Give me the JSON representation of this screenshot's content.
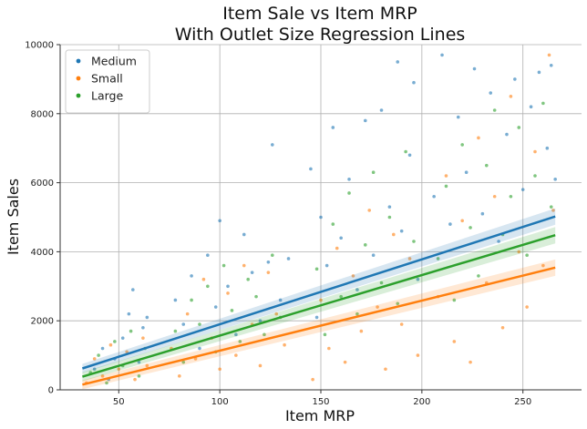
{
  "chart_data": {
    "type": "scatter",
    "title": "Item Sale vs Item MRP",
    "subtitle": "With Outlet Size Regression Lines",
    "xlabel": "Item MRP",
    "ylabel": "Item Sales",
    "xlim": [
      21,
      279
    ],
    "ylim": [
      0,
      10000
    ],
    "xticks": [
      50,
      100,
      150,
      200,
      250
    ],
    "yticks": [
      0,
      2000,
      4000,
      6000,
      8000,
      10000
    ],
    "grid": true,
    "legend_position": "top-left",
    "series": [
      {
        "name": "Medium",
        "color": "#1f77b4",
        "regression": [
          [
            32,
            620
          ],
          [
            266,
            5020
          ]
        ],
        "points": [
          [
            38,
            600
          ],
          [
            42,
            1200
          ],
          [
            45,
            300
          ],
          [
            48,
            900
          ],
          [
            52,
            1500
          ],
          [
            55,
            2200
          ],
          [
            57,
            2900
          ],
          [
            60,
            800
          ],
          [
            62,
            1800
          ],
          [
            64,
            2100
          ],
          [
            78,
            2600
          ],
          [
            82,
            1900
          ],
          [
            86,
            3300
          ],
          [
            90,
            1200
          ],
          [
            94,
            3900
          ],
          [
            98,
            2400
          ],
          [
            100,
            4900
          ],
          [
            104,
            3000
          ],
          [
            108,
            1600
          ],
          [
            112,
            4500
          ],
          [
            116,
            3400
          ],
          [
            120,
            2000
          ],
          [
            124,
            3700
          ],
          [
            126,
            7100
          ],
          [
            130,
            2600
          ],
          [
            134,
            3800
          ],
          [
            145,
            6400
          ],
          [
            148,
            2100
          ],
          [
            150,
            5000
          ],
          [
            153,
            3600
          ],
          [
            156,
            7600
          ],
          [
            160,
            4400
          ],
          [
            164,
            6100
          ],
          [
            168,
            2900
          ],
          [
            172,
            7800
          ],
          [
            176,
            3900
          ],
          [
            180,
            8100
          ],
          [
            184,
            5300
          ],
          [
            188,
            9500
          ],
          [
            190,
            4600
          ],
          [
            194,
            6800
          ],
          [
            196,
            8900
          ],
          [
            198,
            3200
          ],
          [
            206,
            5600
          ],
          [
            210,
            9700
          ],
          [
            214,
            4800
          ],
          [
            218,
            7900
          ],
          [
            222,
            6300
          ],
          [
            226,
            9300
          ],
          [
            230,
            5100
          ],
          [
            234,
            8600
          ],
          [
            238,
            4300
          ],
          [
            242,
            7400
          ],
          [
            246,
            9000
          ],
          [
            250,
            5800
          ],
          [
            254,
            8200
          ],
          [
            258,
            9200
          ],
          [
            262,
            7000
          ],
          [
            264,
            9400
          ],
          [
            266,
            6100
          ]
        ]
      },
      {
        "name": "Small",
        "color": "#ff7f0e",
        "regression": [
          [
            32,
            150
          ],
          [
            266,
            3540
          ]
        ],
        "points": [
          [
            34,
            200
          ],
          [
            38,
            900
          ],
          [
            42,
            400
          ],
          [
            46,
            1300
          ],
          [
            50,
            600
          ],
          [
            54,
            1100
          ],
          [
            58,
            300
          ],
          [
            62,
            1500
          ],
          [
            64,
            700
          ],
          [
            76,
            1200
          ],
          [
            80,
            400
          ],
          [
            84,
            2200
          ],
          [
            88,
            900
          ],
          [
            92,
            3200
          ],
          [
            96,
            1500
          ],
          [
            100,
            600
          ],
          [
            104,
            2800
          ],
          [
            108,
            1000
          ],
          [
            112,
            3600
          ],
          [
            116,
            1900
          ],
          [
            120,
            700
          ],
          [
            124,
            3400
          ],
          [
            128,
            2200
          ],
          [
            132,
            1300
          ],
          [
            146,
            300
          ],
          [
            150,
            2600
          ],
          [
            154,
            1200
          ],
          [
            158,
            4100
          ],
          [
            162,
            800
          ],
          [
            166,
            3300
          ],
          [
            170,
            1700
          ],
          [
            174,
            5200
          ],
          [
            178,
            2400
          ],
          [
            182,
            600
          ],
          [
            186,
            4500
          ],
          [
            190,
            1900
          ],
          [
            194,
            3800
          ],
          [
            198,
            1000
          ],
          [
            208,
            2700
          ],
          [
            212,
            6200
          ],
          [
            216,
            1400
          ],
          [
            220,
            4900
          ],
          [
            224,
            800
          ],
          [
            228,
            7300
          ],
          [
            232,
            3100
          ],
          [
            236,
            5600
          ],
          [
            240,
            1800
          ],
          [
            244,
            8500
          ],
          [
            248,
            4000
          ],
          [
            252,
            2400
          ],
          [
            256,
            6900
          ],
          [
            260,
            3600
          ],
          [
            263,
            9700
          ],
          [
            265,
            5200
          ]
        ]
      },
      {
        "name": "Large",
        "color": "#2ca02c",
        "regression": [
          [
            32,
            380
          ],
          [
            266,
            4480
          ]
        ],
        "points": [
          [
            36,
            500
          ],
          [
            40,
            1000
          ],
          [
            44,
            200
          ],
          [
            48,
            1400
          ],
          [
            52,
            700
          ],
          [
            56,
            1700
          ],
          [
            60,
            400
          ],
          [
            63,
            1200
          ],
          [
            78,
            1700
          ],
          [
            82,
            800
          ],
          [
            86,
            2600
          ],
          [
            90,
            1900
          ],
          [
            94,
            3000
          ],
          [
            98,
            1100
          ],
          [
            102,
            3600
          ],
          [
            106,
            2300
          ],
          [
            110,
            1400
          ],
          [
            114,
            3200
          ],
          [
            118,
            2700
          ],
          [
            122,
            1600
          ],
          [
            126,
            3900
          ],
          [
            130,
            2100
          ],
          [
            148,
            3500
          ],
          [
            152,
            1600
          ],
          [
            156,
            4800
          ],
          [
            160,
            2700
          ],
          [
            164,
            5700
          ],
          [
            168,
            2200
          ],
          [
            172,
            4200
          ],
          [
            176,
            6300
          ],
          [
            180,
            3100
          ],
          [
            184,
            5000
          ],
          [
            188,
            2500
          ],
          [
            192,
            6900
          ],
          [
            196,
            4300
          ],
          [
            208,
            3800
          ],
          [
            212,
            5900
          ],
          [
            216,
            2600
          ],
          [
            220,
            7100
          ],
          [
            224,
            4700
          ],
          [
            228,
            3300
          ],
          [
            232,
            6500
          ],
          [
            236,
            8100
          ],
          [
            240,
            4500
          ],
          [
            244,
            5600
          ],
          [
            248,
            7600
          ],
          [
            252,
            3900
          ],
          [
            256,
            6200
          ],
          [
            260,
            8300
          ],
          [
            264,
            5300
          ]
        ]
      }
    ]
  }
}
